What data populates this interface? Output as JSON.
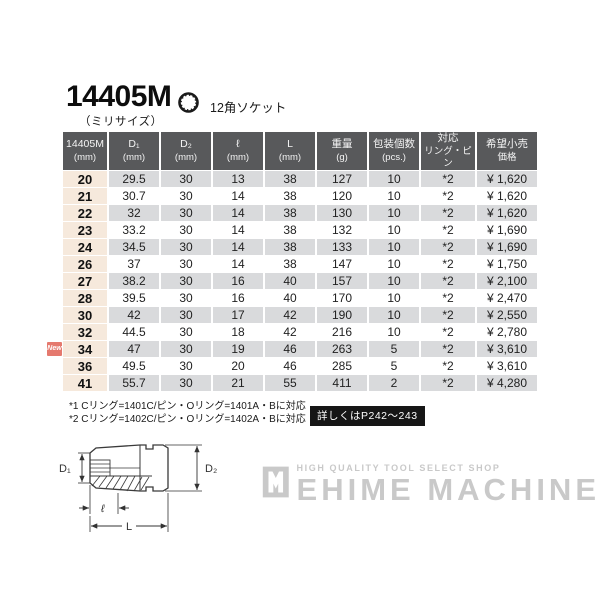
{
  "product": {
    "model": "14405M",
    "size_note": "（ミリサイズ）",
    "type_label": "12角ソケット"
  },
  "table": {
    "headers": [
      {
        "main": "14405M",
        "sub": "(mm)"
      },
      {
        "main": "D₁",
        "sub": "(mm)"
      },
      {
        "main": "D₂",
        "sub": "(mm)"
      },
      {
        "main": "ℓ",
        "sub": "(mm)"
      },
      {
        "main": "L",
        "sub": "(mm)"
      },
      {
        "main": "重量",
        "sub": "(g)"
      },
      {
        "main": "包装個数",
        "sub": "(pcs.)"
      },
      {
        "main": "対応",
        "sub": "リング・ピン"
      },
      {
        "main": "希望小売",
        "sub": "価格"
      }
    ],
    "rows": [
      {
        "size": "20",
        "d1": "29.5",
        "d2": "30",
        "l_small": "13",
        "l_total": "38",
        "weight": "127",
        "pcs": "10",
        "ring_pin": "*2",
        "price": "¥ 1,620",
        "is_new": false
      },
      {
        "size": "21",
        "d1": "30.7",
        "d2": "30",
        "l_small": "14",
        "l_total": "38",
        "weight": "120",
        "pcs": "10",
        "ring_pin": "*2",
        "price": "¥ 1,620",
        "is_new": false
      },
      {
        "size": "22",
        "d1": "32",
        "d2": "30",
        "l_small": "14",
        "l_total": "38",
        "weight": "130",
        "pcs": "10",
        "ring_pin": "*2",
        "price": "¥ 1,620",
        "is_new": false
      },
      {
        "size": "23",
        "d1": "33.2",
        "d2": "30",
        "l_small": "14",
        "l_total": "38",
        "weight": "132",
        "pcs": "10",
        "ring_pin": "*2",
        "price": "¥ 1,690",
        "is_new": false
      },
      {
        "size": "24",
        "d1": "34.5",
        "d2": "30",
        "l_small": "14",
        "l_total": "38",
        "weight": "133",
        "pcs": "10",
        "ring_pin": "*2",
        "price": "¥ 1,690",
        "is_new": false
      },
      {
        "size": "26",
        "d1": "37",
        "d2": "30",
        "l_small": "14",
        "l_total": "38",
        "weight": "147",
        "pcs": "10",
        "ring_pin": "*2",
        "price": "¥ 1,750",
        "is_new": false
      },
      {
        "size": "27",
        "d1": "38.2",
        "d2": "30",
        "l_small": "16",
        "l_total": "40",
        "weight": "157",
        "pcs": "10",
        "ring_pin": "*2",
        "price": "¥ 2,100",
        "is_new": false
      },
      {
        "size": "28",
        "d1": "39.5",
        "d2": "30",
        "l_small": "16",
        "l_total": "40",
        "weight": "170",
        "pcs": "10",
        "ring_pin": "*2",
        "price": "¥ 2,470",
        "is_new": false
      },
      {
        "size": "30",
        "d1": "42",
        "d2": "30",
        "l_small": "17",
        "l_total": "42",
        "weight": "190",
        "pcs": "10",
        "ring_pin": "*2",
        "price": "¥ 2,550",
        "is_new": false
      },
      {
        "size": "32",
        "d1": "44.5",
        "d2": "30",
        "l_small": "18",
        "l_total": "42",
        "weight": "216",
        "pcs": "10",
        "ring_pin": "*2",
        "price": "¥ 2,780",
        "is_new": false
      },
      {
        "size": "34",
        "d1": "47",
        "d2": "30",
        "l_small": "19",
        "l_total": "46",
        "weight": "263",
        "pcs": "5",
        "ring_pin": "*2",
        "price": "¥ 3,610",
        "is_new": true
      },
      {
        "size": "36",
        "d1": "49.5",
        "d2": "30",
        "l_small": "20",
        "l_total": "46",
        "weight": "285",
        "pcs": "5",
        "ring_pin": "*2",
        "price": "¥ 3,610",
        "is_new": false
      },
      {
        "size": "41",
        "d1": "55.7",
        "d2": "30",
        "l_small": "21",
        "l_total": "55",
        "weight": "411",
        "pcs": "2",
        "ring_pin": "*2",
        "price": "¥ 4,280",
        "is_new": false
      }
    ]
  },
  "new_badge_label": "New",
  "footnotes": {
    "line1": "*1 Cリング=1401C/ピン・Oリング=1401A・Bに対応",
    "line2": "*2 Cリング=1402C/ピン・Oリング=1402A・Bに対応"
  },
  "detail_badge": "詳しくはP242〜243",
  "diagram_labels": {
    "d1": "D₁",
    "d2": "D₂",
    "l_small": "ℓ",
    "l_total": "L"
  },
  "watermark": {
    "tagline": "HIGH QUALITY TOOL SELECT SHOP",
    "name": "EHIME MACHINE"
  },
  "colors": {
    "header_bg": "#58595b",
    "row_alt": "#d9dadc",
    "size_col_bg": "#f6e9dc",
    "new_badge_bg": "#e5796e",
    "badge_bg": "#161616",
    "watermark_gray": "#c9c9c9"
  }
}
